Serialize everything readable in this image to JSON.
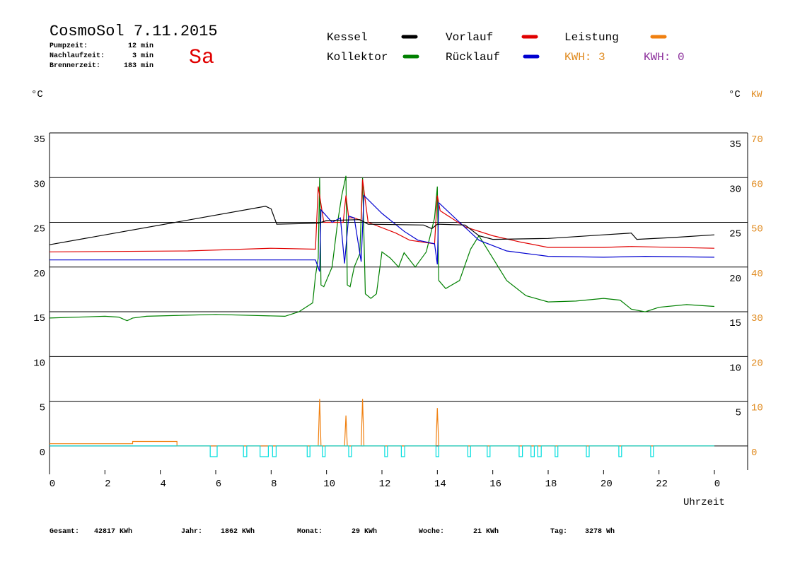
{
  "chart_data": {
    "type": "line",
    "title": "CosmoSol 7.11.2015",
    "day": "Sa",
    "info": [
      {
        "label": "Pumpzeit:",
        "value": "12 min"
      },
      {
        "label": "Nachlaufzeit:",
        "value": "3 min"
      },
      {
        "label": "Brennerzeit:",
        "value": "183 min"
      }
    ],
    "y_unit": "°C",
    "y_unit_right": "°C",
    "y2_unit": "KW",
    "x_label": "Uhrzeit",
    "kwh_labels": [
      {
        "text": "KWH: 3",
        "color": "#e08a1e"
      },
      {
        "text": "KWH: 0",
        "color": "#8b2e9b"
      }
    ],
    "footer": [
      {
        "label": "Gesamt:",
        "value": "42817 KWh"
      },
      {
        "label": "Jahr:",
        "value": "1862 KWh"
      },
      {
        "label": "Monat:",
        "value": "29 KWh"
      },
      {
        "label": "Woche:",
        "value": "21 KWh"
      },
      {
        "label": "Tag:",
        "value": "3278 Wh"
      }
    ],
    "xlim": [
      0,
      25.2
    ],
    "xticks": [
      0,
      2,
      4,
      6,
      8,
      10,
      12,
      14,
      16,
      18,
      20,
      22,
      {
        "value": 24,
        "label": "0"
      }
    ],
    "ylim": [
      -2.7,
      35
    ],
    "yticks": [
      0,
      5,
      10,
      15,
      20,
      25,
      30,
      35
    ],
    "yticks_right": [
      5,
      10,
      15,
      20,
      25,
      30,
      35
    ],
    "y2lim": [
      -5.4,
      70
    ],
    "y2ticks": [
      0,
      10,
      20,
      30,
      40,
      50,
      60,
      70
    ],
    "y2_color": "#e08a1e",
    "grid": true,
    "series": [
      {
        "name": "Kessel",
        "color": "#000000",
        "x": [
          0,
          7.8,
          8.0,
          8.2,
          9.7,
          10.0,
          11.2,
          11.5,
          13.5,
          13.8,
          14.0,
          15.0,
          15.5,
          16.0,
          18.0,
          20.0,
          21.0,
          21.2,
          22.5,
          24.0
        ],
        "values": [
          22.5,
          26.8,
          26.5,
          24.8,
          24.9,
          25.2,
          25.3,
          24.8,
          24.7,
          24.3,
          24.8,
          24.7,
          23.5,
          23.1,
          23.2,
          23.6,
          23.8,
          23.1,
          23.3,
          23.6
        ]
      },
      {
        "name": "Kollektor",
        "color": "#008000",
        "x": [
          0,
          2,
          2.5,
          2.8,
          3,
          3.5,
          6,
          8.5,
          9,
          9.5,
          9.6,
          9.7,
          9.75,
          9.8,
          9.9,
          10.2,
          10.4,
          10.55,
          10.7,
          10.75,
          10.85,
          11.0,
          11.2,
          11.3,
          11.4,
          11.6,
          11.8,
          12.0,
          12.3,
          12.6,
          12.8,
          13.2,
          13.6,
          13.9,
          14.0,
          14.05,
          14.3,
          14.8,
          15.2,
          15.5,
          16.0,
          16.5,
          17.2,
          18.0,
          19.0,
          20.0,
          20.6,
          21.0,
          21.5,
          22.0,
          23.0,
          24.0
        ],
        "values": [
          14.3,
          14.5,
          14.4,
          14.0,
          14.3,
          14.5,
          14.7,
          14.5,
          15.0,
          16.0,
          19.0,
          21.0,
          30.0,
          18.0,
          17.8,
          20.0,
          25.0,
          28.0,
          30.2,
          18.0,
          17.8,
          20.0,
          21.5,
          30.0,
          17.0,
          16.5,
          17.0,
          21.7,
          21.0,
          20.0,
          21.6,
          20.0,
          21.7,
          25.5,
          29.0,
          18.5,
          17.6,
          18.5,
          22.0,
          23.5,
          21.0,
          18.5,
          16.8,
          16.1,
          16.2,
          16.5,
          16.3,
          15.3,
          15.0,
          15.5,
          15.8,
          15.6
        ]
      },
      {
        "name": "Vorlauf",
        "color": "#e00000",
        "x": [
          0,
          5,
          8,
          9.6,
          9.7,
          9.9,
          10.6,
          10.7,
          10.8,
          11.0,
          11.25,
          11.3,
          11.5,
          12.5,
          13.0,
          13.9,
          14.0,
          14.1,
          15.0,
          16.0,
          17.0,
          18.0,
          20.0,
          21.0,
          24.0
        ],
        "values": [
          21.7,
          21.8,
          22.1,
          22.0,
          29.0,
          25.0,
          25.0,
          28.0,
          25.5,
          25.5,
          25.2,
          29.8,
          25.0,
          23.8,
          23.0,
          22.6,
          28.0,
          26.3,
          24.5,
          23.5,
          22.8,
          22.2,
          22.2,
          22.3,
          22.1
        ]
      },
      {
        "name": "Rücklauf",
        "color": "#0000d0",
        "x": [
          0,
          9.6,
          9.75,
          9.8,
          10.2,
          10.5,
          10.65,
          10.8,
          11.0,
          11.25,
          11.35,
          12.0,
          12.8,
          13.3,
          13.9,
          14.0,
          14.05,
          14.8,
          15.5,
          16.5,
          18.0,
          20.0,
          21.5,
          24.0
        ],
        "values": [
          20.8,
          20.8,
          19.5,
          26.4,
          25.0,
          25.5,
          20.4,
          25.7,
          25.5,
          20.6,
          28.0,
          26.0,
          24.0,
          23.0,
          22.6,
          20.3,
          27.2,
          25.0,
          23.0,
          21.8,
          21.2,
          21.1,
          21.2,
          21.1
        ]
      },
      {
        "name": "Leistung",
        "color": "#f08010",
        "axis": "y2",
        "x": [
          0,
          3,
          3,
          4.6,
          4.6,
          9.7,
          9.75,
          9.8,
          10.65,
          10.7,
          10.75,
          11.25,
          11.3,
          11.35,
          13.95,
          14.0,
          14.05,
          24.0
        ],
        "values": [
          0.5,
          0.5,
          1.0,
          1.0,
          0,
          0,
          10.5,
          0,
          0,
          6.8,
          0,
          0,
          10.5,
          0,
          0,
          8.5,
          0,
          0
        ]
      },
      {
        "color": "#00dede",
        "x": [
          0,
          5.8,
          5.8,
          6.05,
          6.05,
          7.0,
          7.0,
          7.12,
          7.12,
          7.6,
          7.6,
          7.9,
          7.9,
          8.05,
          8.05,
          8.18,
          8.18,
          9.3,
          9.3,
          9.4,
          9.4,
          9.85,
          9.85,
          9.95,
          9.95,
          10.8,
          10.8,
          10.9,
          10.9,
          12.1,
          12.1,
          12.2,
          12.2,
          12.7,
          12.7,
          12.82,
          12.82,
          13.95,
          13.95,
          14.05,
          14.05,
          15.1,
          15.1,
          15.2,
          15.2,
          15.8,
          15.8,
          15.9,
          15.9,
          16.95,
          16.95,
          17.07,
          17.07,
          17.38,
          17.38,
          17.5,
          17.5,
          17.62,
          17.62,
          17.75,
          17.75,
          18.25,
          18.25,
          18.35,
          18.35,
          19.38,
          19.38,
          19.48,
          19.48,
          20.55,
          20.55,
          20.65,
          20.65,
          21.7,
          21.7,
          21.8,
          21.8,
          24
        ],
        "values": [
          0,
          0,
          -1.2,
          -1.2,
          0,
          0,
          -1.2,
          -1.2,
          0,
          0,
          -1.2,
          -1.2,
          0,
          0,
          -1.2,
          -1.2,
          0,
          0,
          -1.2,
          -1.2,
          0,
          0,
          -1.2,
          -1.2,
          0,
          0,
          -1.2,
          -1.2,
          0,
          0,
          -1.2,
          -1.2,
          0,
          0,
          -1.2,
          -1.2,
          0,
          0,
          -1.2,
          -1.2,
          0,
          0,
          -1.2,
          -1.2,
          0,
          0,
          -1.2,
          -1.2,
          0,
          0,
          -1.2,
          -1.2,
          0,
          0,
          -1.2,
          -1.2,
          0,
          0,
          -1.2,
          -1.2,
          0,
          0,
          -1.2,
          -1.2,
          0,
          0,
          -1.2,
          -1.2,
          0,
          0,
          -1.2,
          -1.2,
          0,
          0,
          -1.2,
          -1.2,
          0,
          0
        ]
      }
    ]
  }
}
